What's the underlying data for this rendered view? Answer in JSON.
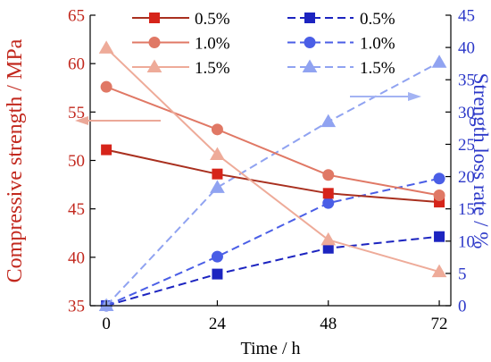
{
  "chart_data": {
    "type": "line",
    "xlabel": "Time / h",
    "ylabel_left": "Compressive strength / MPa",
    "ylabel_right": "Strength loss rate / %",
    "x": [
      0,
      24,
      48,
      72
    ],
    "xlim": [
      -3.5,
      74.5
    ],
    "ylim_left": [
      35,
      65
    ],
    "ylim_right": [
      0,
      45
    ],
    "yticks_left": [
      35,
      40,
      45,
      50,
      55,
      60,
      65
    ],
    "yticks_right": [
      0,
      5,
      10,
      15,
      20,
      25,
      30,
      35,
      40,
      45
    ],
    "grid": false,
    "legend_position": "top",
    "series_left": [
      {
        "name": "0.5%",
        "marker": "square-marker-icon",
        "color": "#a9301f",
        "marker_color": "#d6241a",
        "values": [
          51.1,
          48.6,
          46.6,
          45.7
        ]
      },
      {
        "name": "1.0%",
        "marker": "circle-marker-icon",
        "color": "#e07865",
        "marker_color": "#e07865",
        "values": [
          57.6,
          53.2,
          48.5,
          46.4
        ]
      },
      {
        "name": "1.5%",
        "marker": "triangle-marker-icon",
        "color": "#eeab99",
        "marker_color": "#eeab99",
        "values": [
          61.6,
          50.6,
          41.8,
          38.5
        ]
      }
    ],
    "series_right": [
      {
        "name": "0.5%",
        "marker": "square-marker-icon",
        "color": "#1c24c0",
        "marker_color": "#1c24c0",
        "values": [
          0,
          4.9,
          8.9,
          10.7
        ]
      },
      {
        "name": "1.0%",
        "marker": "circle-marker-icon",
        "color": "#4a5ee6",
        "marker_color": "#4a5ee6",
        "values": [
          0,
          7.6,
          15.9,
          19.7
        ]
      },
      {
        "name": "1.5%",
        "marker": "triangle-marker-icon",
        "color": "#90a3f1",
        "marker_color": "#90a3f1",
        "values": [
          0,
          18.3,
          28.5,
          37.7
        ]
      }
    ]
  },
  "colors": {
    "left_axis": "#c2281e",
    "right_axis": "#2c38c8",
    "axis_line": "#000000",
    "background": "#ffffff"
  },
  "axis_arrows": {
    "left": {
      "icon": "arrow-left-icon",
      "color": "#eba898"
    },
    "right": {
      "icon": "arrow-right-icon",
      "color": "#a3b3f3"
    }
  }
}
